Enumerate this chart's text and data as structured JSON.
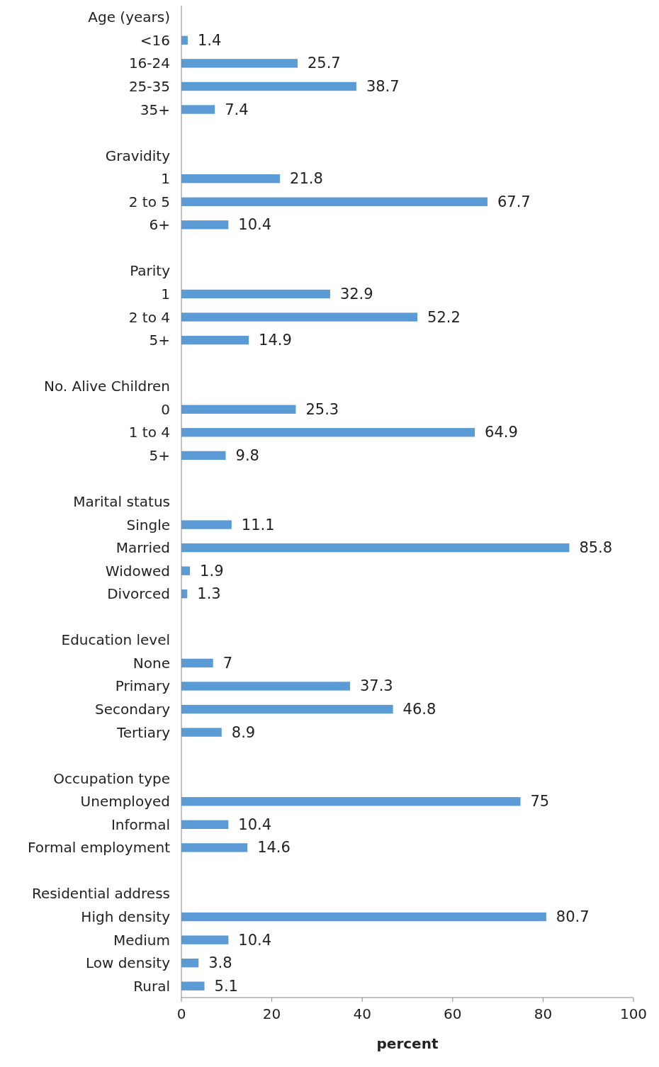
{
  "chart_data": {
    "type": "bar",
    "orientation": "horizontal",
    "xlabel": "percent",
    "categories": [
      "Age (years)",
      "<16",
      "16-24",
      "25-35",
      "35+",
      null,
      "Gravidity",
      "1",
      "2 to 5",
      "6+",
      null,
      "Parity",
      "1",
      "2 to 4",
      "5+",
      null,
      "No. Alive Children",
      "0",
      "1 to 4",
      "5+",
      null,
      "Marital status",
      "Single",
      "Married",
      "Widowed",
      "Divorced",
      null,
      "Education level",
      "None",
      "Primary",
      "Secondary",
      "Tertiary",
      null,
      "Occupation type",
      "Unemployed",
      "Informal",
      "Formal employment",
      null,
      "Residential address",
      "High density",
      "Medium",
      "Low density",
      "Rural"
    ],
    "values": [
      null,
      1.4,
      25.7,
      38.7,
      7.4,
      null,
      null,
      21.8,
      67.7,
      10.4,
      null,
      null,
      32.9,
      52.2,
      14.9,
      null,
      null,
      25.3,
      64.9,
      9.8,
      null,
      null,
      11.1,
      85.8,
      1.9,
      1.3,
      null,
      null,
      7,
      37.3,
      46.8,
      8.9,
      null,
      null,
      75,
      10.4,
      14.6,
      null,
      null,
      80.7,
      10.4,
      3.8,
      5.1
    ],
    "color": "#5b9bd5",
    "xlim": [
      0,
      100
    ],
    "xticks": [
      0,
      20,
      40,
      60,
      80,
      100
    ],
    "data_labels": true,
    "grid": false
  }
}
